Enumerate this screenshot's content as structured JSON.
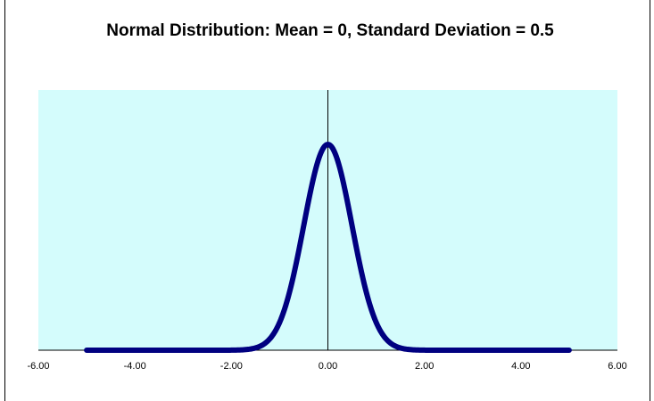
{
  "chart_data": {
    "type": "line",
    "title": "Normal Distribution: Mean = 0, Standard Deviation = 0.5",
    "xlabel": "",
    "ylabel": "",
    "mean": 0,
    "std": 0.5,
    "x_range": [
      -5,
      5
    ],
    "xlim": [
      -6,
      6
    ],
    "x_ticks": [
      "-6.00",
      "-4.00",
      "-2.00",
      "0.00",
      "2.00",
      "4.00",
      "6.00"
    ],
    "grid": false,
    "legend": "none",
    "colors": {
      "plot_area": "#D4FCFC",
      "line": "#000080"
    }
  }
}
